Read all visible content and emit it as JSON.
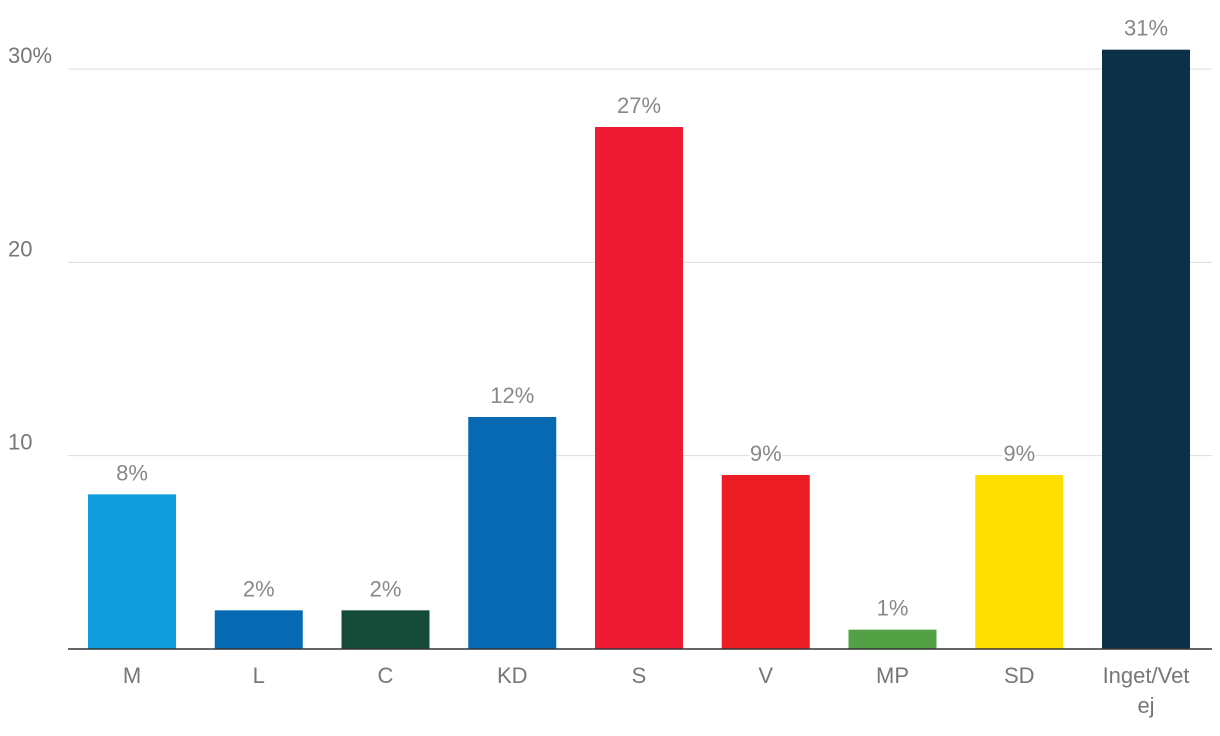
{
  "chart_data": {
    "type": "bar",
    "categories": [
      "M",
      "L",
      "C",
      "KD",
      "S",
      "V",
      "MP",
      "SD",
      "Inget/Vet ej"
    ],
    "category_lines": [
      [
        "M"
      ],
      [
        "L"
      ],
      [
        "C"
      ],
      [
        "KD"
      ],
      [
        "S"
      ],
      [
        "V"
      ],
      [
        "MP"
      ],
      [
        "SD"
      ],
      [
        "Inget/Vet",
        "ej"
      ]
    ],
    "values": [
      8,
      2,
      2,
      12,
      27,
      9,
      1,
      9,
      31
    ],
    "data_labels": [
      "8%",
      "2%",
      "2%",
      "12%",
      "27%",
      "9%",
      "1%",
      "9%",
      "31%"
    ],
    "colors": [
      "#119cdb",
      "#0669b2",
      "#134a38",
      "#0669b2",
      "#ed1b34",
      "#ec1d24",
      "#53a045",
      "#ffdf00",
      "#0c3047"
    ],
    "y_ticks": [
      10,
      20,
      30
    ],
    "y_tick_labels": [
      "10",
      "20",
      "30%"
    ],
    "ylim": [
      0,
      30
    ],
    "grid": true,
    "legend": "none",
    "title": "",
    "xlabel": "",
    "ylabel": ""
  }
}
